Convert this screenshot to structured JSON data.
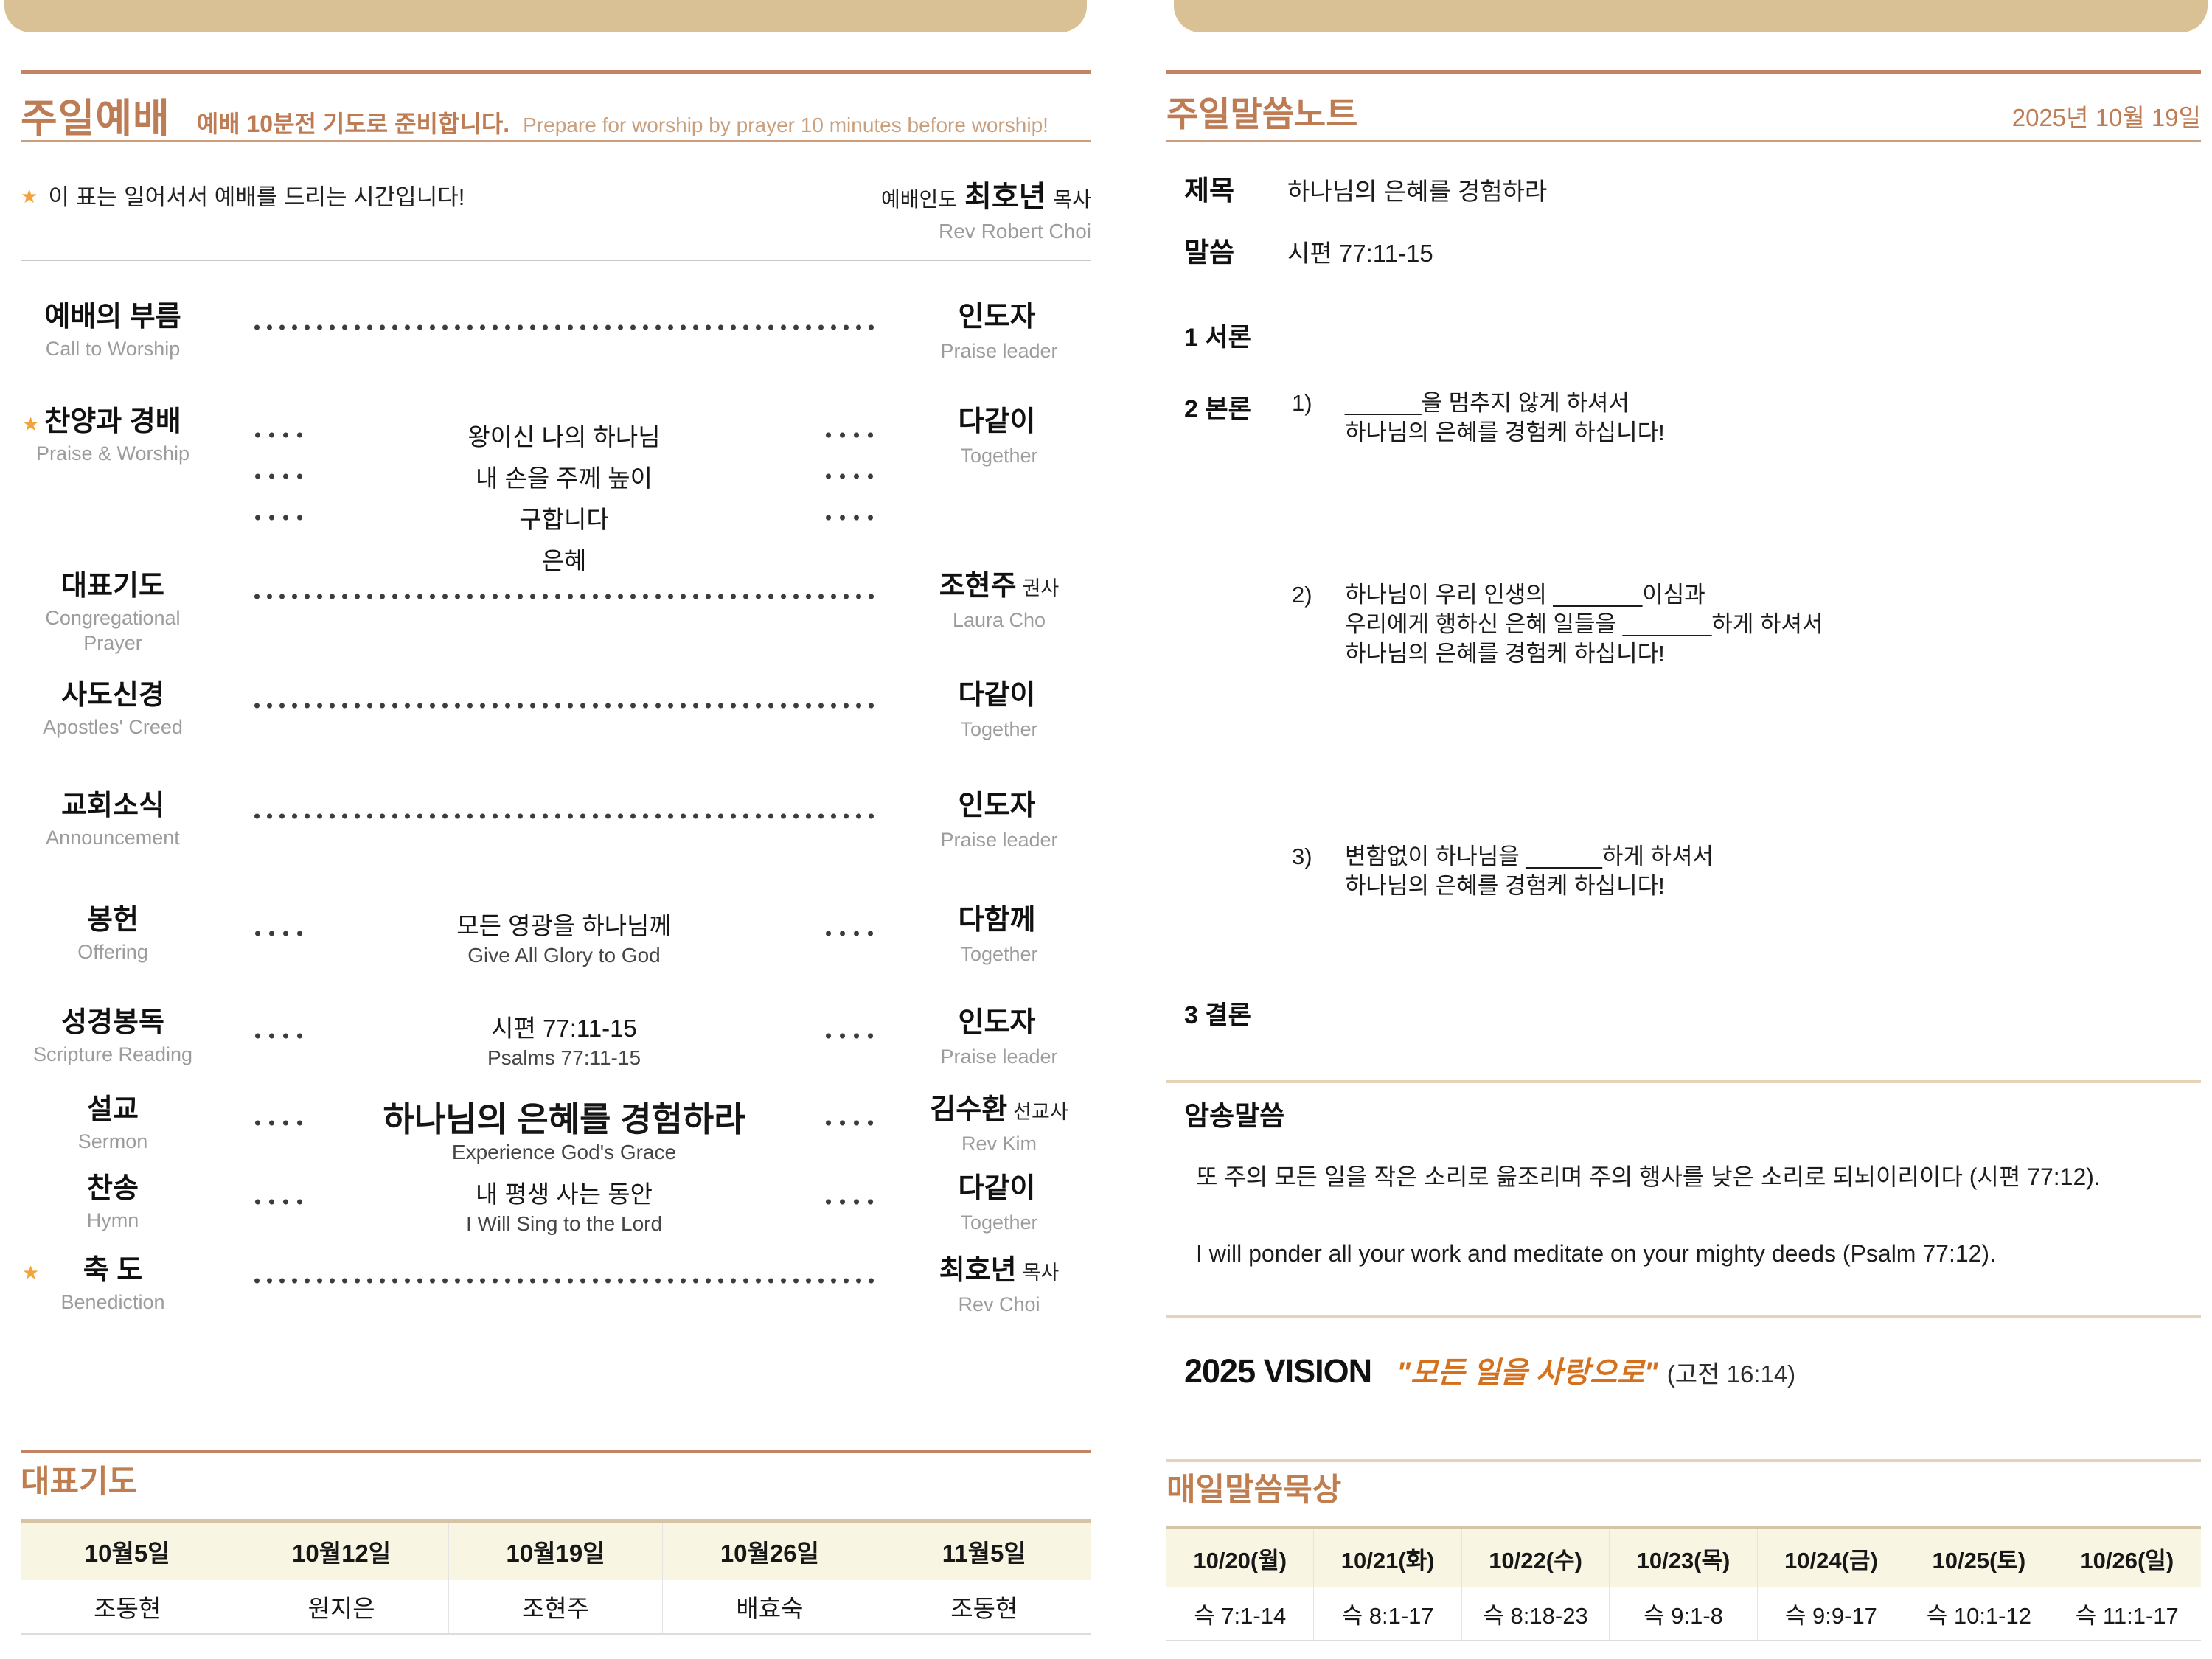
{
  "colors": {
    "bar_tan": "#d9c095",
    "accent_copper": "#bd7c54",
    "star_orange": "#f2a33c",
    "vision_orange": "#d4711f",
    "table_header_bg": "#f8f6e3"
  },
  "left": {
    "header": {
      "title": "주일예배",
      "subtitle_ko": "예배 10분전 기도로 준비합니다.",
      "subtitle_en": "Prepare for worship by prayer 10 minutes before worship!"
    },
    "note": {
      "star": "★",
      "text": "이 표는 일어서서 예배를 드리는 시간입니다!",
      "leader_label": "예배인도",
      "leader_name": "최호년",
      "leader_title": "목사",
      "leader_en": "Rev Robert Choi"
    },
    "items": [
      {
        "star": false,
        "ko": "예배의 부름",
        "en": "Call to Worship",
        "right_ko": "인도자",
        "right_en": "Praise leader"
      },
      {
        "star": true,
        "ko": "찬양과 경배",
        "en": "Praise & Worship",
        "songs": [
          "왕이신 나의 하나님",
          "내 손을 주께 높이",
          "구합니다",
          "은혜"
        ],
        "right_ko": "다같이",
        "right_en": "Together"
      },
      {
        "star": false,
        "ko": "대표기도",
        "en": "Congregational Prayer",
        "right_ko": "조현주",
        "right_suffix": "권사",
        "right_en": "Laura Cho"
      },
      {
        "star": false,
        "ko": "사도신경",
        "en": "Apostles' Creed",
        "right_ko": "다같이",
        "right_en": "Together"
      },
      {
        "star": false,
        "ko": "교회소식",
        "en": "Announcement",
        "right_ko": "인도자",
        "right_en": "Praise leader"
      },
      {
        "star": false,
        "ko": "봉헌",
        "en": "Offering",
        "center_ko": "모든 영광을 하나님께",
        "center_en": "Give All Glory to God",
        "right_ko": "다함께",
        "right_en": "Together"
      },
      {
        "star": false,
        "ko": "성경봉독",
        "en": "Scripture Reading",
        "center_ko": "시편 77:11-15",
        "center_en": "Psalms 77:11-15",
        "right_ko": "인도자",
        "right_en": "Praise leader"
      },
      {
        "star": false,
        "ko": "설교",
        "en": "Sermon",
        "center_ko": "하나님의 은혜를 경험하라",
        "center_en": "Experience God's Grace",
        "center_big": true,
        "right_ko": "김수환",
        "right_suffix": "선교사",
        "right_en": "Rev Kim"
      },
      {
        "star": false,
        "ko": "찬송",
        "en": "Hymn",
        "center_ko": "내 평생 사는 동안",
        "center_en": "I Will Sing to the Lord",
        "right_ko": "다같이",
        "right_en": "Together"
      },
      {
        "star": true,
        "ko": "축 도",
        "en": "Benediction",
        "right_ko": "최호년",
        "right_suffix": "목사",
        "right_en": "Rev Choi"
      }
    ],
    "prayer_table": {
      "title": "대표기도",
      "headers": [
        "10월5일",
        "10월12일",
        "10월19일",
        "10월26일",
        "11월5일"
      ],
      "values": [
        "조동현",
        "원지은",
        "조현주",
        "배효숙",
        "조동현"
      ]
    }
  },
  "right": {
    "header": {
      "title": "주일말씀노트",
      "date": "2025년 10월 19일"
    },
    "sermon": {
      "label_title": "제목",
      "title": "하나님의 은혜를 경험하라",
      "label_scripture": "말씀",
      "scripture": "시편 77:11-15"
    },
    "outline": {
      "intro": "1 서론",
      "body": "2 본론",
      "points": [
        {
          "num": "1)",
          "lines": [
            "______을 멈추지 않게 하셔서",
            "하나님의 은혜를 경험케 하십니다!"
          ]
        },
        {
          "num": "2)",
          "lines": [
            "하나님이 우리 인생의 _______이심과",
            "우리에게 행하신 은혜 일들을 _______하게 하셔서",
            "하나님의 은혜를 경험케 하십니다!"
          ]
        },
        {
          "num": "3)",
          "lines": [
            "변함없이 하나님을 ______하게 하셔서",
            "하나님의 은혜를 경험케 하십니다!"
          ]
        }
      ],
      "conclusion": "3 결론"
    },
    "memory": {
      "title": "암송말씀",
      "verse_ko": "또 주의 모든 일을 작은 소리로 읊조리며 주의 행사를 낮은 소리로 되뇌이리이다 (시편 77:12).",
      "verse_en": "I will ponder all your work and meditate on your mighty deeds (Psalm 77:12)."
    },
    "vision": {
      "label": "2025 VISION",
      "quote": "\"모든 일을 사랑으로\"",
      "ref": "(고전 16:14)"
    },
    "meditation_table": {
      "title": "매일말씀묵상",
      "headers": [
        "10/20(월)",
        "10/21(화)",
        "10/22(수)",
        "10/23(목)",
        "10/24(금)",
        "10/25(토)",
        "10/26(일)"
      ],
      "values": [
        "슥 7:1-14",
        "슥 8:1-17",
        "슥 8:18-23",
        "슥 9:1-8",
        "슥 9:9-17",
        "슥 10:1-12",
        "슥 11:1-17"
      ]
    }
  }
}
